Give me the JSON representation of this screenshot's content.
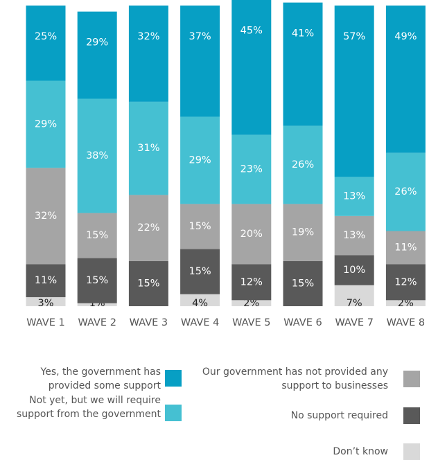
{
  "chart_data": {
    "type": "stacked_bar",
    "categories": [
      "WAVE 1",
      "WAVE 2",
      "WAVE 3",
      "WAVE 4",
      "WAVE 5",
      "WAVE 6",
      "WAVE 7",
      "WAVE 8"
    ],
    "ylim": [
      0,
      100
    ],
    "series": [
      {
        "name": "Yes, the government has provided some support",
        "color": "#079fc4",
        "values": [
          25,
          29,
          32,
          37,
          45,
          41,
          57,
          49
        ],
        "value_labels": [
          "25%",
          "29%",
          "32%",
          "37%",
          "45%",
          "41%",
          "57%",
          "49%"
        ]
      },
      {
        "name": "Not yet, but we will require support from the government",
        "color": "#45c0d2",
        "values": [
          29,
          38,
          31,
          29,
          23,
          26,
          13,
          26
        ],
        "value_labels": [
          "29%",
          "38%",
          "31%",
          "29%",
          "23%",
          "26%",
          "13%",
          "26%"
        ]
      },
      {
        "name": "Our government has not provided any support to businesses",
        "color": "#a5a5a5",
        "values": [
          32,
          15,
          22,
          15,
          20,
          19,
          13,
          11
        ],
        "value_labels": [
          "32%",
          "15%",
          "22%",
          "15%",
          "20%",
          "19%",
          "13%",
          "11%"
        ]
      },
      {
        "name": "No support required",
        "color": "#595959",
        "values": [
          11,
          15,
          15,
          15,
          12,
          15,
          10,
          12
        ],
        "value_labels": [
          "11%",
          "15%",
          "15%",
          "15%",
          "12%",
          "15%",
          "10%",
          "12%"
        ]
      },
      {
        "name": "Don’t know",
        "color": "#d9d9d9",
        "values": [
          3,
          1,
          null,
          4,
          2,
          null,
          7,
          2
        ],
        "value_labels": [
          "3%",
          "1%",
          null,
          "4%",
          "2%",
          null,
          "7%",
          "2%"
        ]
      }
    ]
  }
}
